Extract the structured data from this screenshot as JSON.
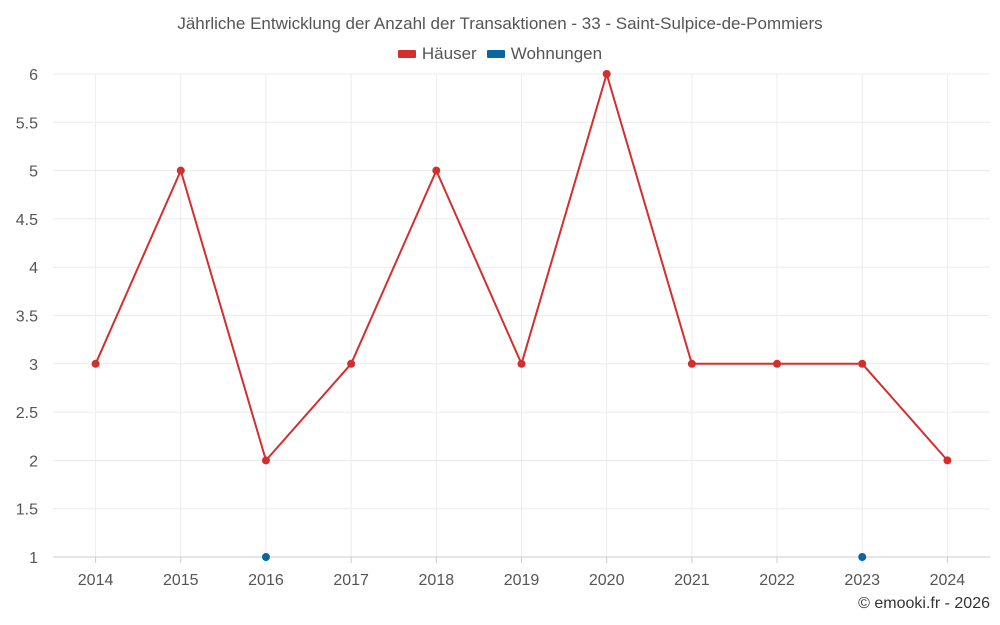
{
  "chart_data": {
    "type": "line",
    "title": "Jährliche Entwicklung der Anzahl der Transaktionen - 33 - Saint-Sulpice-de-Pommiers",
    "categories": [
      "2014",
      "2015",
      "2016",
      "2017",
      "2018",
      "2019",
      "2020",
      "2021",
      "2022",
      "2023",
      "2024"
    ],
    "series": [
      {
        "name": "Häuser",
        "color": "#d32f2f",
        "values": [
          3,
          5,
          2,
          3,
          5,
          3,
          6,
          3,
          3,
          3,
          2
        ],
        "style": "line-markers"
      },
      {
        "name": "Wohnungen",
        "color": "#0b66a3",
        "values": [
          null,
          null,
          1,
          null,
          null,
          null,
          null,
          null,
          null,
          1,
          null
        ],
        "style": "markers"
      }
    ],
    "y_ticks": [
      "1",
      "1.5",
      "2",
      "2.5",
      "3",
      "3.5",
      "4",
      "4.5",
      "5",
      "5.5",
      "6"
    ],
    "ylim": [
      1,
      6
    ],
    "xlabel": "",
    "ylabel": "",
    "grid": true,
    "legend_position": "top-center"
  },
  "credit": "© emooki.fr - 2026"
}
